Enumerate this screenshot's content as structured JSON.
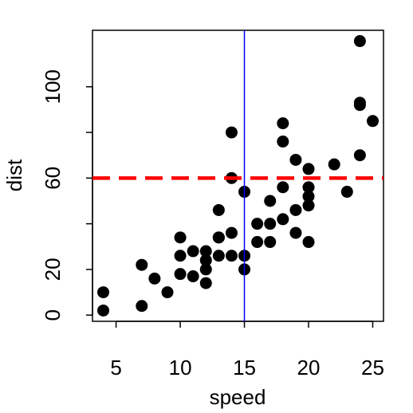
{
  "chart_data": {
    "type": "scatter",
    "x_label": "speed",
    "y_label": "dist",
    "x": [
      4,
      4,
      7,
      7,
      8,
      9,
      10,
      10,
      10,
      11,
      11,
      12,
      12,
      12,
      12,
      13,
      13,
      13,
      13,
      14,
      14,
      14,
      14,
      15,
      15,
      15,
      16,
      16,
      17,
      17,
      17,
      18,
      18,
      18,
      18,
      19,
      19,
      19,
      20,
      20,
      20,
      20,
      20,
      22,
      23,
      24,
      24,
      24,
      24,
      25
    ],
    "values": [
      2,
      10,
      4,
      22,
      16,
      10,
      18,
      26,
      34,
      17,
      28,
      14,
      20,
      24,
      28,
      26,
      34,
      34,
      46,
      26,
      36,
      60,
      80,
      20,
      26,
      54,
      32,
      40,
      32,
      40,
      50,
      42,
      56,
      76,
      84,
      36,
      46,
      68,
      32,
      48,
      52,
      56,
      64,
      66,
      54,
      70,
      92,
      93,
      120,
      85
    ],
    "color": "#000000",
    "xlim": [
      3.16,
      25.84
    ],
    "xticks": [
      5,
      10,
      15,
      20,
      25
    ],
    "ylim": [
      -2.72,
      124.72
    ],
    "yticks": [
      0,
      20,
      60,
      100
    ],
    "y_unlabeled_ticks": [
      40,
      80
    ],
    "hline": {
      "value": 60,
      "color": "#ff0000",
      "dashed": true
    },
    "vline": {
      "value": 15,
      "color": "#0000ff",
      "dashed": false
    }
  }
}
